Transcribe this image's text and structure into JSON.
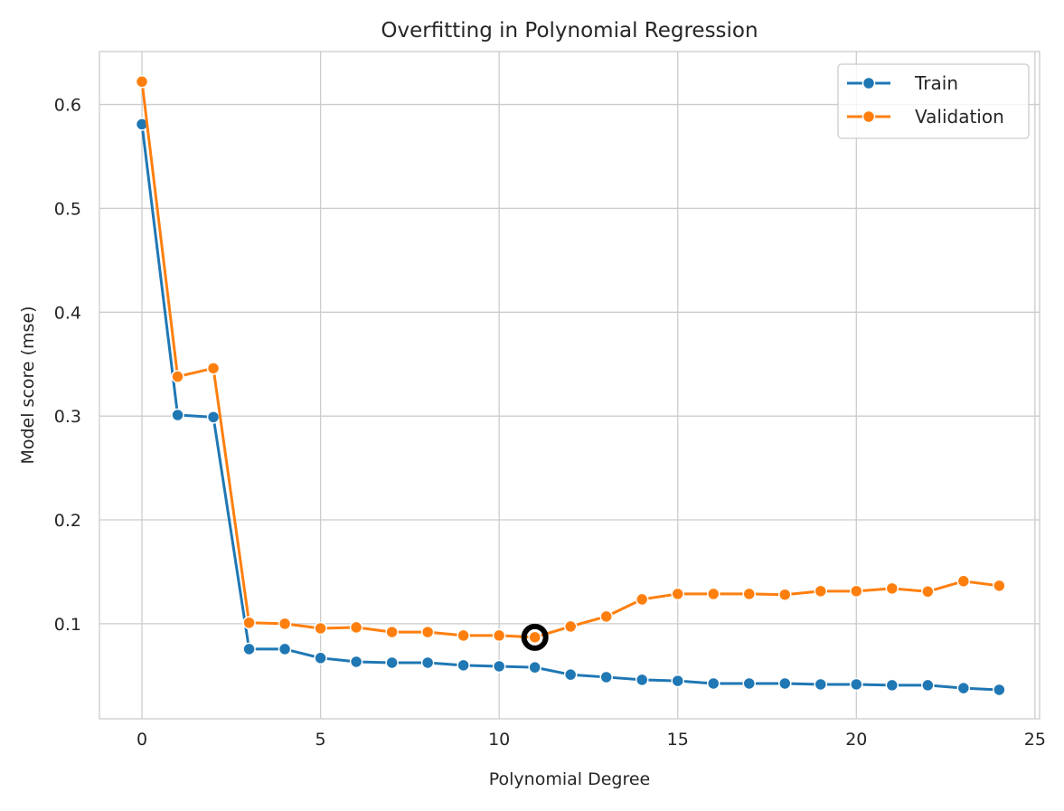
{
  "chart_data": {
    "type": "line",
    "title": "Overfitting in Polynomial Regression",
    "xlabel": "Polynomial Degree",
    "ylabel": "Model score (mse)",
    "xlim": [
      -1.19,
      25.13
    ],
    "ylim": [
      0.0085,
      0.651
    ],
    "xticks": [
      0,
      5,
      10,
      15,
      20,
      25
    ],
    "yticks": [
      0.1,
      0.2,
      0.3,
      0.4,
      0.5,
      0.6
    ],
    "grid": true,
    "legend_position": "top-right",
    "x": [
      0,
      1,
      2,
      3,
      4,
      5,
      6,
      7,
      8,
      9,
      10,
      11,
      12,
      13,
      14,
      15,
      16,
      17,
      18,
      19,
      20,
      21,
      22,
      23,
      24
    ],
    "series": [
      {
        "name": "Train",
        "color": "#1f77b4",
        "values": [
          0.581,
          0.301,
          0.299,
          0.0756,
          0.0756,
          0.067,
          0.0634,
          0.0625,
          0.0625,
          0.06,
          0.059,
          0.058,
          0.051,
          0.0486,
          0.046,
          0.045,
          0.0425,
          0.0425,
          0.0425,
          0.0416,
          0.0416,
          0.0408,
          0.0408,
          0.038,
          0.0364
        ]
      },
      {
        "name": "Validation",
        "color": "#ff7f0e",
        "values": [
          0.622,
          0.338,
          0.346,
          0.101,
          0.1,
          0.0956,
          0.0965,
          0.092,
          0.092,
          0.0887,
          0.0887,
          0.087,
          0.0974,
          0.107,
          0.1235,
          0.1287,
          0.1287,
          0.1287,
          0.128,
          0.1314,
          0.1314,
          0.134,
          0.131,
          0.141,
          0.1366
        ]
      }
    ],
    "highlight": {
      "series": "Validation",
      "x": 11,
      "y": 0.087,
      "color": "#000000"
    }
  }
}
